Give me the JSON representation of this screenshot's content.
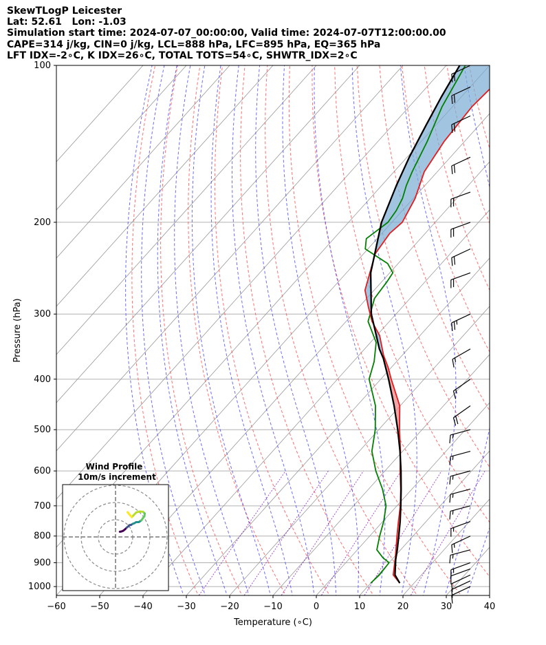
{
  "header": {
    "line1": "SkewTLogP Leicester",
    "line2": "Lat: 52.61   Lon: -1.03",
    "line3": "Simulation start time: 2024-07-07_00:00:00, Valid time: 2024-07-07T12:00:00.00",
    "line4": "CAPE=314 j/kg, CIN=0 j/kg, LCL=888 hPa, LFC=895 hPa, EQ=365 hPa",
    "line5": "LFT IDX=-2∘C, K IDX=26∘C, TOTAL TOTS=54∘C, SHWTR_IDX=2∘C"
  },
  "inset": {
    "title1": "Wind Profile",
    "title2": "10m/s increment"
  },
  "colors": {
    "temperature": "#e41a1c",
    "dewpoint": "#008000",
    "parcel": "#000000",
    "cape_fill": "#79acd3",
    "cin_fill": "#f08080",
    "dry_adiabat": "#ff4c4c",
    "moist_adiabat": "#3a3aff",
    "mixing_ratio": "#7f00bf",
    "isotherm": "#999999"
  },
  "chart_data": {
    "type": "line",
    "title": "",
    "xlabel": "Temperature (∘C)",
    "ylabel": "Pressure (hPa)",
    "xlim": [
      -60,
      40
    ],
    "ylim": [
      1040,
      100
    ],
    "yscale": "log",
    "grid": true,
    "x_ticks": [
      -60,
      -50,
      -40,
      -30,
      -20,
      -10,
      0,
      10,
      20,
      30,
      40
    ],
    "x_tick_labels": [
      "−60",
      "−50",
      "−40",
      "−30",
      "−20",
      "−10",
      "0",
      "10",
      "20",
      "30",
      "40"
    ],
    "y_ticks": [
      1000,
      900,
      800,
      700,
      600,
      500,
      400,
      300,
      200,
      100
    ],
    "series": [
      {
        "key": "temperature",
        "pressure": [
          985,
          950,
          900,
          880,
          850,
          800,
          750,
          700,
          650,
          600,
          550,
          500,
          450,
          400,
          380,
          360,
          330,
          310,
          290,
          270,
          250,
          230,
          210,
          200,
          180,
          160,
          140,
          120,
          110,
          100
        ],
        "temperature": [
          16.7,
          13.5,
          11.3,
          10.4,
          8.9,
          6.3,
          3.6,
          0.8,
          -2.6,
          -6.5,
          -10.5,
          -15.2,
          -20.1,
          -27.6,
          -30.7,
          -34.3,
          -39.3,
          -44.0,
          -48.0,
          -52.1,
          -54.6,
          -57.3,
          -58.2,
          -57.6,
          -59.6,
          -63.0,
          -64.7,
          -65.5,
          -65.0,
          -65.3
        ]
      },
      {
        "key": "dewpoint",
        "pressure": [
          985,
          950,
          900,
          880,
          850,
          800,
          750,
          700,
          650,
          600,
          550,
          500,
          450,
          400,
          370,
          340,
          310,
          280,
          260,
          250,
          240,
          225,
          215,
          200,
          190,
          180,
          170,
          160,
          140,
          120,
          100
        ],
        "dewpoint": [
          10.0,
          10.3,
          10.0,
          7.5,
          4.5,
          2.3,
          0.2,
          -2.5,
          -6.8,
          -12.1,
          -17.1,
          -20.8,
          -25.7,
          -32.7,
          -35.2,
          -38.7,
          -44.9,
          -48.2,
          -48.8,
          -49.3,
          -52.4,
          -60.6,
          -62.5,
          -60.9,
          -61.4,
          -62.5,
          -64.3,
          -65.8,
          -68.6,
          -72.4,
          -75.6
        ]
      },
      {
        "key": "parcel",
        "pressure": [
          985,
          950,
          900,
          888,
          850,
          800,
          750,
          700,
          650,
          600,
          550,
          500,
          450,
          400,
          365,
          350,
          300,
          250,
          200,
          170,
          150,
          130,
          115,
          100
        ],
        "temperature": [
          16.7,
          13.9,
          11.5,
          10.9,
          9.2,
          6.7,
          4.0,
          0.9,
          -2.5,
          -6.3,
          -10.6,
          -15.6,
          -21.4,
          -28.2,
          -33.7,
          -36.6,
          -45.7,
          -54.4,
          -62.4,
          -66.6,
          -69.5,
          -72.3,
          -74.6,
          -76.9
        ]
      }
    ],
    "shading": [
      {
        "name": "CAPE",
        "from_pressure": 365,
        "to_pressure": 100
      },
      {
        "name": "CIN",
        "from_pressure": 985,
        "to_pressure": 365
      }
    ],
    "wind_barbs": {
      "pressure": [
        1000,
        975,
        950,
        925,
        900,
        850,
        800,
        750,
        700,
        650,
        600,
        550,
        500,
        450,
        400,
        350,
        300,
        250,
        225,
        200,
        175,
        150,
        125,
        110,
        100
      ],
      "speed_kt": [
        10,
        10,
        10,
        10,
        15,
        15,
        15,
        15,
        15,
        15,
        15,
        15,
        15,
        20,
        15,
        15,
        25,
        20,
        20,
        20,
        20,
        20,
        20,
        20,
        20
      ],
      "direction_deg": [
        245,
        245,
        245,
        250,
        250,
        255,
        245,
        250,
        255,
        255,
        255,
        255,
        255,
        235,
        235,
        240,
        245,
        250,
        245,
        250,
        250,
        245,
        245,
        245,
        245
      ]
    },
    "hodograph": {
      "title": "Wind Profile",
      "subtitle": "10m/s increment",
      "ring_spacing_ms": 10,
      "u": [
        2.5,
        3.5,
        4.5,
        5.5,
        6.5,
        7.5,
        8.0,
        9.0,
        10.0,
        11.0,
        12.0,
        13.5,
        15.0,
        16.0,
        16.8,
        17.0,
        16.0,
        14.0,
        12.0,
        10.5,
        9.5,
        8.5,
        7.5,
        7.0
      ],
      "v": [
        3.0,
        3.2,
        3.6,
        4.4,
        5.4,
        6.2,
        6.8,
        7.0,
        7.6,
        8.0,
        8.6,
        8.6,
        9.6,
        11.0,
        12.0,
        13.6,
        14.6,
        14.8,
        14.2,
        12.6,
        11.5,
        12.6,
        13.8,
        14.4
      ]
    }
  }
}
